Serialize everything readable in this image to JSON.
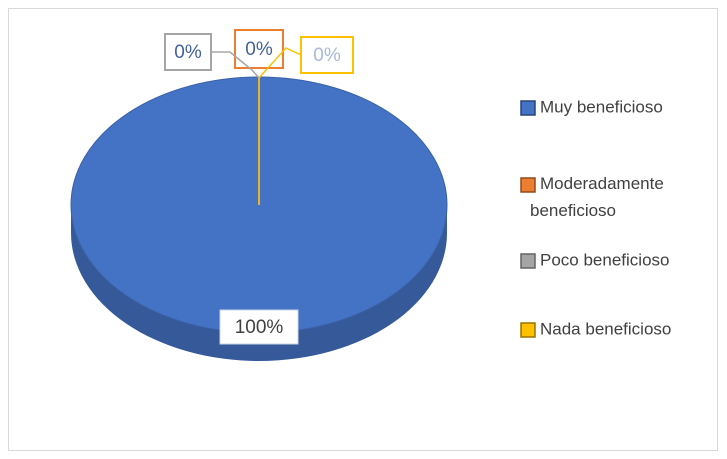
{
  "chart_data": {
    "type": "pie",
    "categories": [
      "Muy beneficioso",
      "Moderadamente beneficioso",
      "Poco beneficioso",
      "Nada beneficioso"
    ],
    "values": [
      100,
      0,
      0,
      0
    ],
    "value_labels": [
      "100%",
      "0%",
      "0%",
      "0%"
    ],
    "colors": [
      "#4472c4",
      "#ed7d31",
      "#a5a5a5",
      "#ffc000"
    ],
    "legend": "right"
  }
}
